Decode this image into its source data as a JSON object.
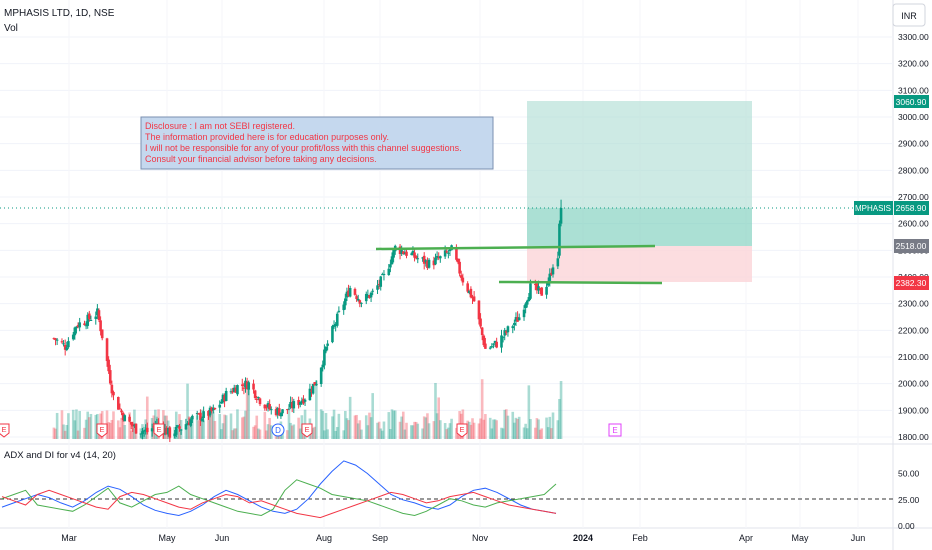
{
  "header": {
    "symbol_title": "MPHASIS LTD, 1D, NSE",
    "vol_label": "Vol",
    "currency": "INR"
  },
  "disclosure_lines": [
    "Disclosure : I am not SEBI registered.",
    "The information provided here is for education purposes only.",
    "I will not be responsible for any of your profit/loss with this channel suggestions.",
    "Consult your financial advisor before taking any decisions."
  ],
  "price_badges": {
    "target": "3060.90",
    "symbol": "MPHASIS",
    "current": "2658.90",
    "entry": "2518.00",
    "stop": "2382.30"
  },
  "adx_label": "ADX and DI for v4 (14, 20)",
  "earnings_marker": "E",
  "dividend_marker": "D",
  "colors": {
    "up": "#089981",
    "down": "#f23645",
    "adx": "#2962ff",
    "di_plus": "#4caf50",
    "di_minus": "#f23645",
    "support_line": "#4caf50",
    "target_zone": "#b2dfd6",
    "stop_zone": "#fbd5d8",
    "disclosure_text": "#f23645",
    "disclosure_bg": "#c5d8ee",
    "marker": "#e040fb"
  },
  "chart_data": [
    {
      "type": "candlestick",
      "title": "MPHASIS LTD, 1D, NSE",
      "y_ticks": [
        "3300.00",
        "3200.00",
        "3100.00",
        "3000.00",
        "2900.00",
        "2800.00",
        "2700.00",
        "2600.00",
        "2500.00",
        "2400.00",
        "2300.00",
        "2200.00",
        "2100.00",
        "2000.00",
        "1900.00",
        "1800.00"
      ],
      "y_range": [
        1800,
        3350
      ],
      "x_ticks": [
        "Mar",
        "May",
        "Jun",
        "Aug",
        "Sep",
        "Nov",
        "2024",
        "Feb",
        "Apr",
        "May",
        "Jun"
      ],
      "ohlc_path": [
        {
          "date": "2023-02-01",
          "close": 2170
        },
        {
          "date": "2023-02-08",
          "close": 2140
        },
        {
          "date": "2023-02-15",
          "close": 2220
        },
        {
          "date": "2023-02-22",
          "close": 2240
        },
        {
          "date": "2023-02-28",
          "close": 2265
        },
        {
          "date": "2023-03-03",
          "close": 2180
        },
        {
          "date": "2023-03-10",
          "close": 1950
        },
        {
          "date": "2023-03-17",
          "close": 1870
        },
        {
          "date": "2023-03-24",
          "close": 1830
        },
        {
          "date": "2023-03-31",
          "close": 1820
        },
        {
          "date": "2023-04-07",
          "close": 1850
        },
        {
          "date": "2023-04-14",
          "close": 1810
        },
        {
          "date": "2023-04-21",
          "close": 1835
        },
        {
          "date": "2023-04-28",
          "close": 1870
        },
        {
          "date": "2023-05-05",
          "close": 1880
        },
        {
          "date": "2023-05-12",
          "close": 1900
        },
        {
          "date": "2023-05-19",
          "close": 1960
        },
        {
          "date": "2023-05-26",
          "close": 1990
        },
        {
          "date": "2023-06-02",
          "close": 2000
        },
        {
          "date": "2023-06-09",
          "close": 1940
        },
        {
          "date": "2023-06-16",
          "close": 1900
        },
        {
          "date": "2023-06-23",
          "close": 1895
        },
        {
          "date": "2023-06-30",
          "close": 1920
        },
        {
          "date": "2023-07-07",
          "close": 1950
        },
        {
          "date": "2023-07-14",
          "close": 2010
        },
        {
          "date": "2023-07-21",
          "close": 2150
        },
        {
          "date": "2023-07-28",
          "close": 2260
        },
        {
          "date": "2023-08-04",
          "close": 2360
        },
        {
          "date": "2023-08-11",
          "close": 2310
        },
        {
          "date": "2023-08-18",
          "close": 2340
        },
        {
          "date": "2023-08-25",
          "close": 2400
        },
        {
          "date": "2023-09-01",
          "close": 2510
        },
        {
          "date": "2023-09-08",
          "close": 2490
        },
        {
          "date": "2023-09-15",
          "close": 2470
        },
        {
          "date": "2023-09-22",
          "close": 2450
        },
        {
          "date": "2023-09-29",
          "close": 2470
        },
        {
          "date": "2023-10-06",
          "close": 2500
        },
        {
          "date": "2023-10-13",
          "close": 2390
        },
        {
          "date": "2023-10-20",
          "close": 2310
        },
        {
          "date": "2023-10-27",
          "close": 2130
        },
        {
          "date": "2023-11-03",
          "close": 2150
        },
        {
          "date": "2023-11-10",
          "close": 2200
        },
        {
          "date": "2023-11-17",
          "close": 2250
        },
        {
          "date": "2023-11-24",
          "close": 2360
        },
        {
          "date": "2023-12-01",
          "close": 2340
        },
        {
          "date": "2023-12-06",
          "close": 2400
        },
        {
          "date": "2023-12-08",
          "close": 2450
        },
        {
          "date": "2023-12-11",
          "close": 2540
        },
        {
          "date": "2023-12-13",
          "close": 2659
        }
      ],
      "horizontal_levels": [
        {
          "label": "support_upper",
          "value": 2518
        },
        {
          "label": "support_lower",
          "value": 2382.3
        }
      ],
      "position_tool": {
        "target": 3060.9,
        "entry": 2518,
        "stop": 2382.3
      }
    },
    {
      "type": "line",
      "title": "ADX and DI for v4 (14, 20)",
      "y_ticks": [
        "50.00",
        "25.00",
        "0.00"
      ],
      "threshold": 20,
      "series": [
        {
          "name": "ADX",
          "values": [
            18,
            22,
            26,
            30,
            27,
            22,
            18,
            24,
            32,
            38,
            35,
            28,
            20,
            15,
            12,
            10,
            14,
            20,
            28,
            34,
            30,
            24,
            18,
            14,
            12,
            16,
            26,
            40,
            52,
            62,
            58,
            50,
            40,
            30,
            25,
            22,
            18,
            16,
            20,
            28,
            34,
            36,
            32,
            26,
            20,
            16,
            14,
            12
          ]
        },
        {
          "name": "DI+",
          "values": [
            26,
            30,
            34,
            20,
            18,
            16,
            14,
            20,
            28,
            36,
            22,
            18,
            24,
            30,
            32,
            38,
            30,
            26,
            22,
            18,
            14,
            12,
            10,
            16,
            34,
            44,
            40,
            36,
            30,
            28,
            26,
            24,
            20,
            16,
            12,
            10,
            14,
            20,
            26,
            24,
            20,
            18,
            22,
            24,
            26,
            28,
            30,
            40
          ]
        },
        {
          "name": "DI-",
          "values": [
            28,
            24,
            20,
            30,
            34,
            30,
            26,
            22,
            18,
            16,
            28,
            32,
            30,
            26,
            22,
            18,
            16,
            22,
            26,
            30,
            28,
            22,
            24,
            20,
            16,
            12,
            10,
            8,
            12,
            16,
            20,
            24,
            28,
            32,
            30,
            26,
            22,
            24,
            28,
            30,
            32,
            28,
            24,
            20,
            18,
            16,
            14,
            12
          ]
        }
      ]
    }
  ]
}
